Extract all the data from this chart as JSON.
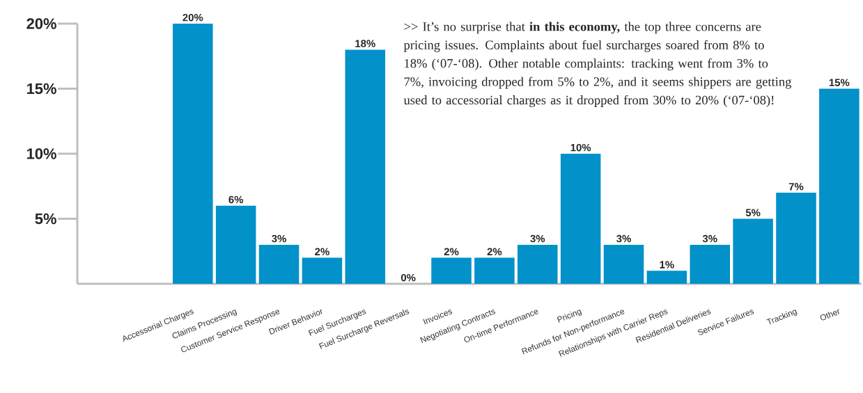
{
  "chart_data": {
    "type": "bar",
    "categories": [
      null,
      null,
      "Accessorial Charges",
      "Claims Processing",
      "Customer Service Response",
      "Driver Behavior",
      "Fuel Surcharges",
      "Fuel Surcharge Reversals",
      "Invoices",
      "Negotiating Contracts",
      "On-time Performance",
      "Pricing",
      "Refunds for Non-performance",
      "Relationships with Carrier Reps",
      "Residential Deliveries",
      "Service Failures",
      "Tracking",
      "Other"
    ],
    "values": [
      null,
      null,
      20,
      6,
      3,
      2,
      18,
      0,
      2,
      2,
      3,
      10,
      3,
      1,
      3,
      5,
      7,
      15
    ],
    "value_labels": [
      null,
      null,
      "20%",
      "6%",
      "3%",
      "2%",
      "18%",
      "0%",
      "2%",
      "2%",
      "3%",
      "10%",
      "3%",
      "1%",
      "3%",
      "5%",
      "7%",
      "15%"
    ],
    "color": "#0391c9",
    "ylim": [
      0,
      20
    ],
    "yticks": [
      {
        "value": 5,
        "label": "5%"
      },
      {
        "value": 10,
        "label": "10%"
      },
      {
        "value": 15,
        "label": "15%"
      },
      {
        "value": 20,
        "label": "20%"
      }
    ],
    "grid": false,
    "annotations": [
      ">> It’s no surprise that **in this economy,** the top three concerns are pricing issues. Complaints about fuel surcharges soared from 8% to 18% (‘07-‘08). Other notable complaints: tracking went from 3% to 7%, invoicing dropped from 5% to 2%, and it seems shippers are getting used to accessorial charges as it dropped from 30% to 20% (‘07-‘08)!"
    ]
  }
}
